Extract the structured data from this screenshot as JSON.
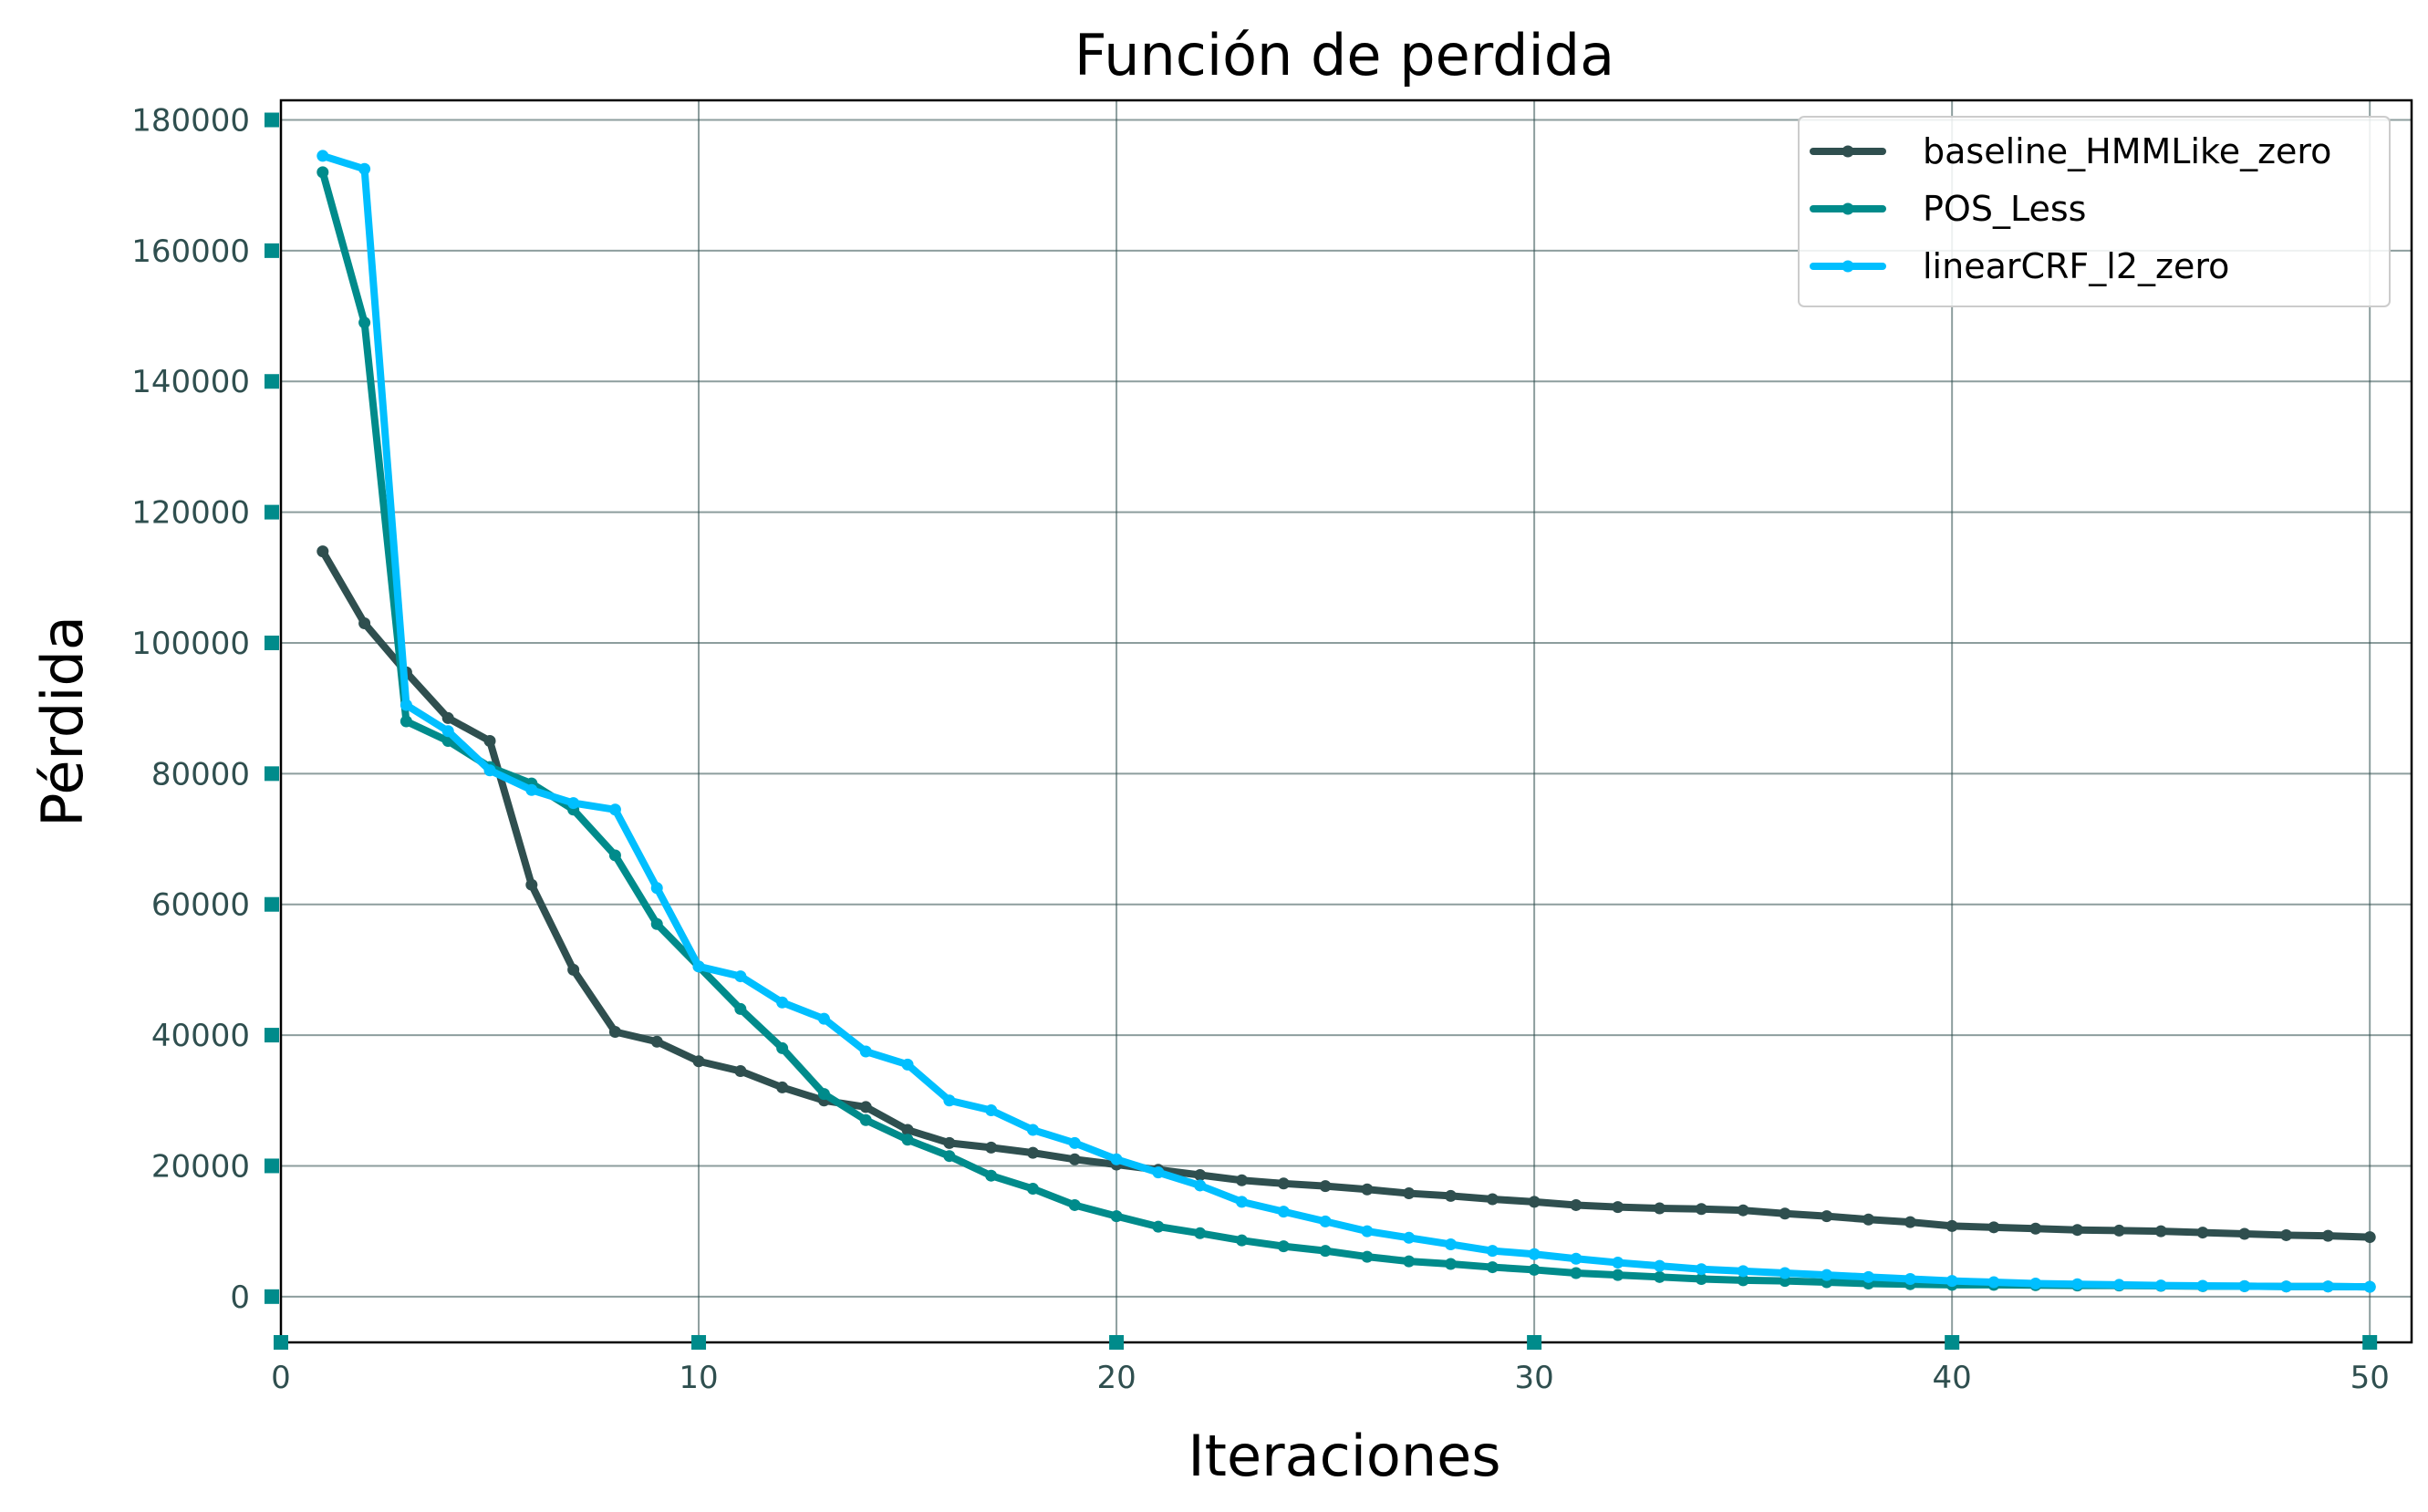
{
  "chart_data": {
    "type": "line",
    "title": "Función de perdida",
    "xlabel": "Iteraciones",
    "ylabel": "Pérdida",
    "xlim": [
      0,
      51
    ],
    "ylim": [
      -7000,
      183000
    ],
    "xticks": [
      0,
      10,
      20,
      30,
      40,
      50
    ],
    "yticks": [
      0,
      20000,
      40000,
      60000,
      80000,
      100000,
      120000,
      140000,
      160000,
      180000
    ],
    "grid": true,
    "legend_position": "top-right",
    "x": [
      1,
      2,
      3,
      4,
      5,
      6,
      7,
      8,
      9,
      10,
      11,
      12,
      13,
      14,
      15,
      16,
      17,
      18,
      19,
      20,
      21,
      22,
      23,
      24,
      25,
      26,
      27,
      28,
      29,
      30,
      31,
      32,
      33,
      34,
      35,
      36,
      37,
      38,
      39,
      40,
      41,
      42,
      43,
      44,
      45,
      46,
      47,
      48,
      49,
      50
    ],
    "series": [
      {
        "name": "baseline_HMMLike_zero",
        "color": "#2f4f4f",
        "values": [
          114000,
          103000,
          95500,
          88500,
          85000,
          63000,
          50000,
          40500,
          39000,
          36000,
          34500,
          32000,
          30000,
          29000,
          25500,
          23500,
          22800,
          22000,
          21000,
          20200,
          19400,
          18600,
          17800,
          17300,
          16900,
          16400,
          15800,
          15400,
          14900,
          14500,
          14000,
          13700,
          13500,
          13400,
          13200,
          12700,
          12300,
          11800,
          11400,
          10800,
          10600,
          10400,
          10200,
          10100,
          10000,
          9800,
          9600,
          9400,
          9300,
          9100
        ]
      },
      {
        "name": "POS_Less",
        "color": "#008b8b",
        "values": [
          172000,
          149000,
          88000,
          85000,
          81000,
          78500,
          74500,
          67500,
          57000,
          50500,
          44000,
          38000,
          31000,
          27000,
          24000,
          21500,
          18500,
          16500,
          14000,
          12300,
          10700,
          9700,
          8600,
          7700,
          7000,
          6100,
          5400,
          5000,
          4500,
          4100,
          3600,
          3300,
          3000,
          2700,
          2500,
          2400,
          2200,
          2000,
          1900,
          1800,
          1800,
          1750,
          1700,
          1700,
          1650,
          1600,
          1600,
          1550,
          1550,
          1500
        ]
      },
      {
        "name": "linearCRF_l2_zero",
        "color": "#00bfff",
        "values": [
          174500,
          172500,
          90500,
          86500,
          80500,
          77500,
          75500,
          74500,
          62500,
          50500,
          49000,
          45000,
          42500,
          37500,
          35500,
          30000,
          28500,
          25500,
          23500,
          21000,
          19000,
          17000,
          14500,
          13000,
          11500,
          10000,
          9000,
          8000,
          7000,
          6500,
          5800,
          5200,
          4700,
          4200,
          3900,
          3600,
          3300,
          3000,
          2700,
          2400,
          2200,
          2000,
          1900,
          1800,
          1700,
          1650,
          1600,
          1550,
          1550,
          1500
        ]
      }
    ]
  }
}
